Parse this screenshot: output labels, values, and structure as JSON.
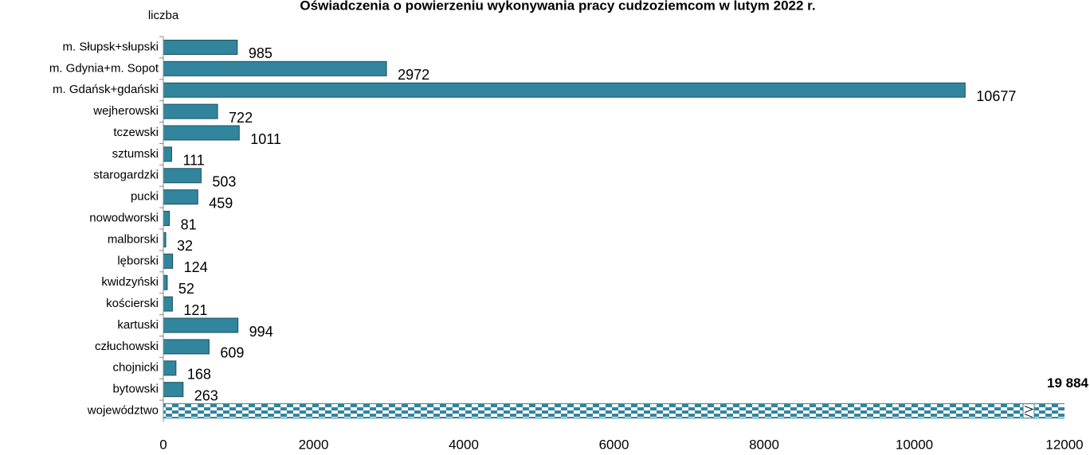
{
  "chart_data": {
    "type": "bar",
    "orientation": "horizontal",
    "title": "Oświadczenia o powierzeniu wykonywania pracy cudzoziemcom w lutym 2022 r.",
    "y_label": "liczba",
    "categories": [
      "m. Słupsk+słupski",
      "m. Gdynia+m. Sopot",
      "m. Gdańsk+gdański",
      "wejherowski",
      "tczewski",
      "sztumski",
      "starogardzki",
      "pucki",
      "nowodworski",
      "malborski",
      "lęborski",
      "kwidzyński",
      "kościerski",
      "kartuski",
      "człuchowski",
      "chojnicki",
      "bytowski",
      "województwo"
    ],
    "values": [
      985,
      2972,
      10677,
      722,
      1011,
      111,
      503,
      459,
      81,
      32,
      124,
      52,
      121,
      994,
      609,
      168,
      263,
      19884
    ],
    "value_labels": [
      "985",
      "2972",
      "10677",
      "722",
      "1011",
      "111",
      "503",
      "459",
      "81",
      "32",
      "124",
      "52",
      "121",
      "994",
      "609",
      "168",
      "263",
      "19 884"
    ],
    "color": "#31859c",
    "xlim": [
      0,
      12000
    ],
    "xticks": [
      0,
      2000,
      4000,
      6000,
      8000,
      10000,
      12000
    ],
    "grid": false
  }
}
